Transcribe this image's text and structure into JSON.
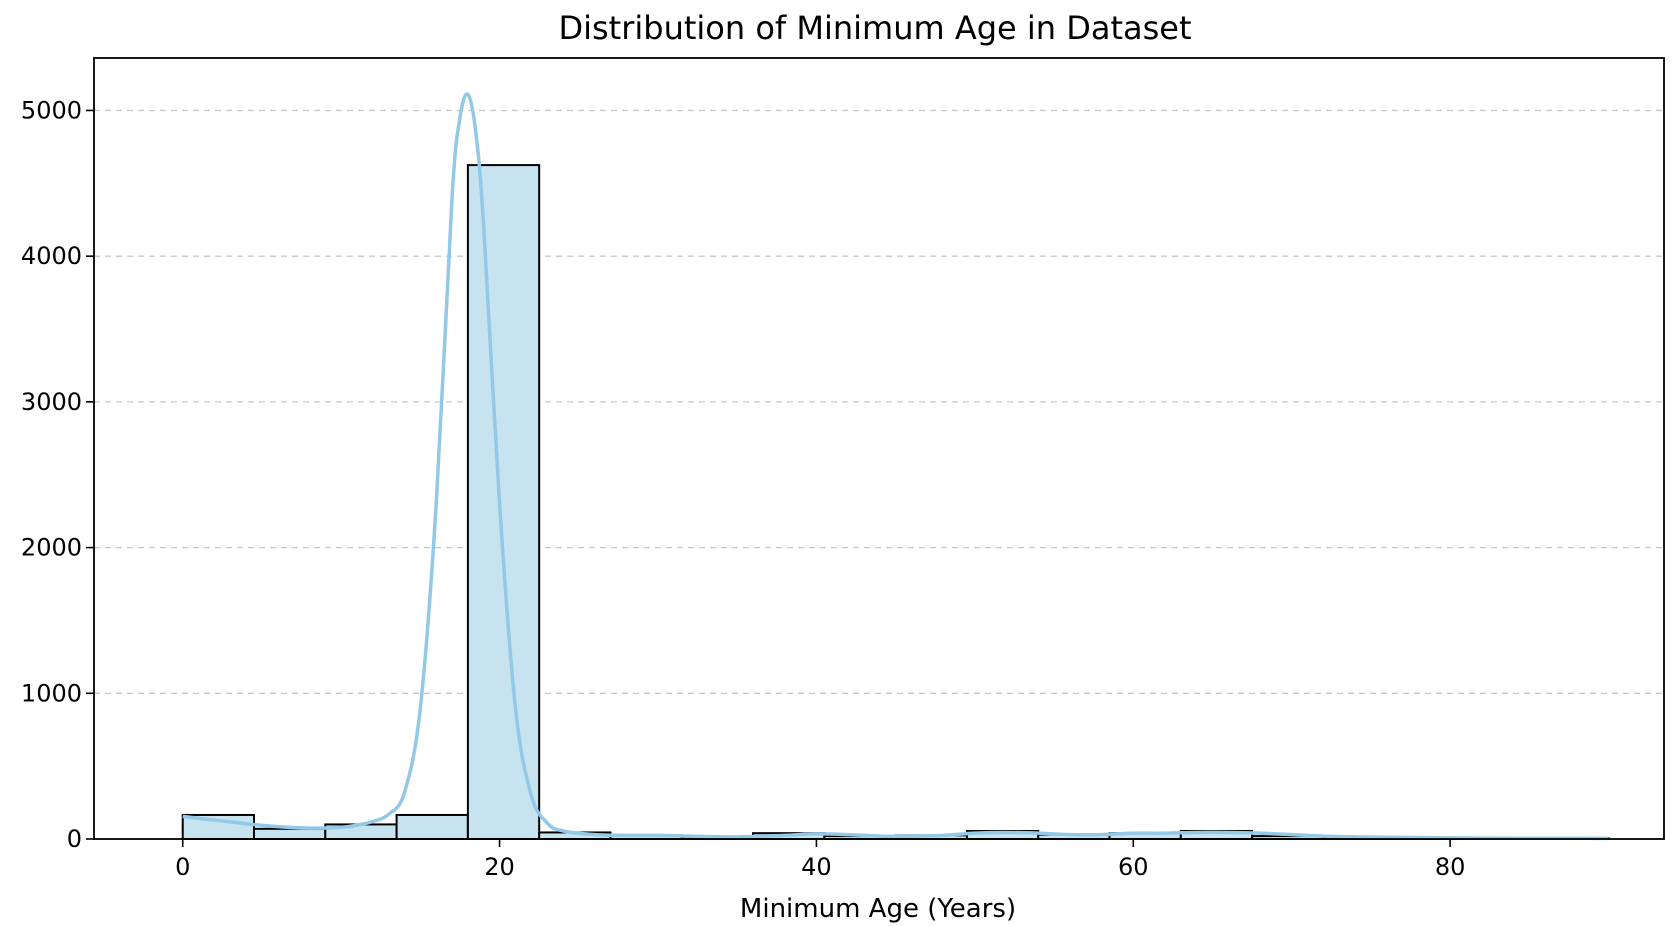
{
  "chart_data": {
    "type": "bar",
    "chart_kind": "histogram with KDE line",
    "title": "Distribution of Minimum Age in Dataset",
    "xlabel": "Minimum Age (Years)",
    "ylabel": "",
    "xlim": [
      -5.6,
      93.5
    ],
    "ylim": [
      0,
      5360
    ],
    "x_ticks": [
      0,
      20,
      40,
      60,
      80
    ],
    "y_ticks": [
      0,
      1000,
      2000,
      3000,
      4000,
      5000
    ],
    "grid": "y-dashed",
    "colors": {
      "bar_fill": "#c7e3f0",
      "bar_edge": "#000000",
      "kde": "#93c9e6"
    },
    "bins": [
      {
        "start": 0.0,
        "end": 4.5,
        "count": 165
      },
      {
        "start": 4.5,
        "end": 9.0,
        "count": 70
      },
      {
        "start": 9.0,
        "end": 13.5,
        "count": 100
      },
      {
        "start": 13.5,
        "end": 18.0,
        "count": 165
      },
      {
        "start": 18.0,
        "end": 22.5,
        "count": 4625
      },
      {
        "start": 22.5,
        "end": 27.0,
        "count": 45
      },
      {
        "start": 27.0,
        "end": 31.5,
        "count": 25
      },
      {
        "start": 31.5,
        "end": 36.0,
        "count": 15
      },
      {
        "start": 36.0,
        "end": 40.5,
        "count": 40
      },
      {
        "start": 40.5,
        "end": 45.0,
        "count": 20
      },
      {
        "start": 45.0,
        "end": 49.5,
        "count": 25
      },
      {
        "start": 49.5,
        "end": 54.0,
        "count": 55
      },
      {
        "start": 54.0,
        "end": 58.5,
        "count": 30
      },
      {
        "start": 58.5,
        "end": 63.0,
        "count": 40
      },
      {
        "start": 63.0,
        "end": 67.5,
        "count": 55
      },
      {
        "start": 67.5,
        "end": 72.0,
        "count": 20
      },
      {
        "start": 72.0,
        "end": 76.5,
        "count": 8
      },
      {
        "start": 76.5,
        "end": 81.0,
        "count": 5
      },
      {
        "start": 81.0,
        "end": 85.5,
        "count": 5
      },
      {
        "start": 85.5,
        "end": 90.0,
        "count": 5
      }
    ],
    "kde": {
      "x": [
        0,
        2,
        4,
        6,
        8,
        10,
        11,
        12,
        13,
        14,
        15,
        16,
        17,
        17.5,
        18,
        18.5,
        19,
        20,
        21,
        22,
        23,
        24,
        26,
        28,
        30,
        32,
        35,
        38,
        40,
        42,
        44,
        46,
        48,
        50,
        52,
        54,
        56,
        58,
        60,
        62,
        64,
        66,
        68,
        70,
        72,
        74,
        76,
        80,
        84,
        88,
        90
      ],
      "y": [
        155,
        130,
        105,
        85,
        75,
        80,
        95,
        120,
        170,
        320,
        900,
        2300,
        4400,
        4950,
        5110,
        4850,
        4200,
        2300,
        900,
        300,
        110,
        55,
        30,
        25,
        25,
        20,
        15,
        25,
        35,
        30,
        20,
        20,
        25,
        40,
        45,
        40,
        30,
        30,
        40,
        40,
        45,
        45,
        40,
        30,
        20,
        15,
        12,
        8,
        5,
        5,
        4
      ]
    }
  }
}
